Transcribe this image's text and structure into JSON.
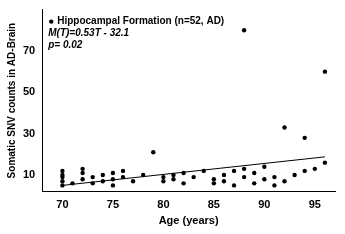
{
  "chart_data": {
    "type": "scatter",
    "x_label": "Age (years)",
    "y_label": "Somatic SNV counts in AD-Brain",
    "xlim": [
      68,
      97
    ],
    "xticks": [
      70,
      75,
      80,
      85,
      90,
      95
    ],
    "ylim": [
      2,
      90
    ],
    "yticks": [
      10,
      30,
      50,
      70
    ],
    "grid": false,
    "legend": "top-left",
    "annotations": [
      "p= 0.02"
    ],
    "series": [
      {
        "name": "Hippocampal Formation (n=52, AD)",
        "type": "scatter",
        "marker": "circle",
        "color": "#000000",
        "x": [
          70,
          70,
          70,
          70,
          70,
          71,
          72,
          72,
          72,
          73,
          73,
          74,
          74,
          75,
          75,
          75,
          76,
          76,
          77,
          78,
          79,
          80,
          80,
          81,
          81,
          82,
          82,
          83,
          84,
          85,
          85,
          86,
          86,
          87,
          87,
          88,
          88,
          88,
          89,
          89,
          90,
          90,
          91,
          91,
          92,
          92,
          93,
          94,
          94,
          95,
          96,
          96
        ],
        "values": [
          5,
          7,
          9,
          10,
          12,
          6,
          8,
          11,
          13,
          6,
          9,
          7,
          10,
          5,
          8,
          11,
          9,
          12,
          7,
          10,
          21,
          7,
          9,
          8,
          10,
          6,
          11,
          9,
          12,
          6,
          8,
          10,
          7,
          5,
          12,
          80,
          9,
          13,
          6,
          11,
          8,
          14,
          5,
          9,
          33,
          7,
          10,
          28,
          12,
          13,
          60,
          16
        ]
      },
      {
        "name": "M(T)=0.53T - 32.1",
        "type": "line",
        "line_style": "solid",
        "color": "#000000",
        "x": [
          70,
          96
        ],
        "values": [
          5.0,
          18.8
        ]
      }
    ]
  }
}
